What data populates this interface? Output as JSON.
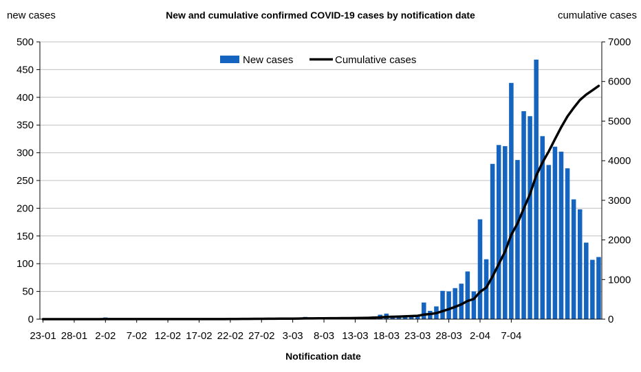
{
  "chart_data": {
    "type": "bar+line",
    "title": "New and cumulative confirmed COVID-19 cases by notification date",
    "xlabel": "Notification date",
    "ylabel_left": "new cases",
    "ylabel_right": "cumulative cases",
    "ylim_left": [
      0,
      500
    ],
    "ylim_right": [
      0,
      7000
    ],
    "yticks_left": [
      0,
      50,
      100,
      150,
      200,
      250,
      300,
      350,
      400,
      450,
      500
    ],
    "yticks_right": [
      0,
      1000,
      2000,
      3000,
      4000,
      5000,
      6000,
      7000
    ],
    "xtick_labels": [
      "23-01",
      "28-01",
      "2-02",
      "7-02",
      "12-02",
      "17-02",
      "22-02",
      "27-02",
      "3-03",
      "8-03",
      "13-03",
      "18-03",
      "23-03",
      "28-03",
      "2-04",
      "7-04"
    ],
    "legend": {
      "placement": "top-center",
      "entries": [
        "New cases",
        "Cumulative cases"
      ]
    },
    "grid": true,
    "colors": {
      "bars": "#1565C0",
      "line": "#000000",
      "grid": "#bfbfbf"
    },
    "series": [
      {
        "name": "New cases",
        "kind": "bar",
        "axis": "left",
        "values": [
          0,
          0,
          0,
          0,
          0,
          0,
          0,
          0,
          0,
          0,
          3,
          0,
          0,
          0,
          0,
          0,
          0,
          0,
          0,
          0,
          0,
          0,
          0,
          0,
          0,
          0,
          0,
          0,
          0,
          0,
          1,
          1,
          1,
          1,
          1,
          1,
          1,
          1,
          1,
          1,
          1,
          1,
          4,
          1,
          1,
          1,
          1,
          1,
          1,
          1,
          2,
          2,
          3,
          5,
          8,
          10,
          5,
          5,
          5,
          6,
          7,
          30,
          15,
          23,
          51,
          50,
          56,
          64,
          86,
          50,
          180,
          108,
          280,
          314,
          312,
          426,
          287,
          375,
          366,
          468,
          330,
          278,
          311,
          302,
          272,
          216,
          198,
          138,
          107,
          112
        ]
      },
      {
        "name": "Cumulative cases",
        "kind": "line",
        "axis": "right",
        "values": [
          0,
          0,
          0,
          0,
          0,
          0,
          0,
          0,
          0,
          0,
          3,
          3,
          3,
          3,
          3,
          3,
          3,
          3,
          3,
          3,
          3,
          3,
          3,
          3,
          3,
          3,
          3,
          3,
          3,
          3,
          4,
          5,
          6,
          7,
          8,
          9,
          10,
          11,
          12,
          13,
          14,
          15,
          19,
          20,
          21,
          22,
          23,
          24,
          25,
          26,
          28,
          30,
          33,
          38,
          46,
          56,
          61,
          66,
          71,
          77,
          84,
          114,
          129,
          152,
          203,
          253,
          309,
          373,
          459,
          509,
          689,
          797,
          1077,
          1391,
          1703,
          2129,
          2416,
          2791,
          3157,
          3625,
          3955,
          4233,
          4544,
          4846,
          5118,
          5334,
          5532,
          5670,
          5777,
          5889
        ]
      }
    ]
  }
}
